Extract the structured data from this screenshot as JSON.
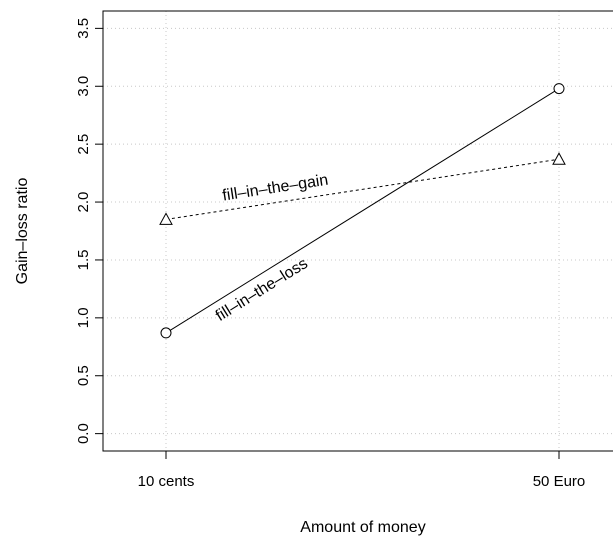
{
  "chart_data": {
    "type": "line",
    "title": "",
    "xlabel": "Amount of money",
    "ylabel": "Gain–loss ratio",
    "categories": [
      "10 cents",
      "50 Euro"
    ],
    "ylim": [
      -0.15,
      3.65
    ],
    "yticks": [
      "0.0",
      "0.5",
      "1.0",
      "1.5",
      "2.0",
      "2.5",
      "3.0",
      "3.5"
    ],
    "grid": true,
    "legend": "none",
    "series": [
      {
        "name": "fill–in–the–gain",
        "values": [
          1.85,
          2.37
        ],
        "marker": "triangle",
        "line_style": "dashed",
        "color": "#000000"
      },
      {
        "name": "fill–in–the–loss",
        "values": [
          0.87,
          2.98
        ],
        "marker": "circle",
        "line_style": "solid",
        "color": "#000000"
      }
    ]
  }
}
